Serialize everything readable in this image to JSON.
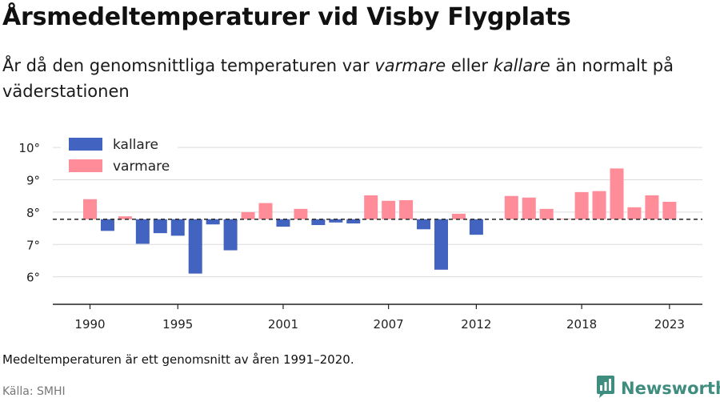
{
  "title": "Årsmedeltemperaturer vid Visby Flygplats",
  "subtitle": {
    "p1": "År då den genomsnittliga temperaturen var ",
    "varmare": "varmare",
    "p2": " eller ",
    "kallare": "kallare",
    "p3": " än normalt på väderstationen"
  },
  "note": "Medeltemperaturen är ett genomsnitt av åren 1991–2020.",
  "source": "Källa: SMHI",
  "brand": "Newsworthy",
  "colors": {
    "kallare": "#4263c0",
    "varmare": "#ff8c99",
    "grid": "#dcdcdc",
    "axis": "#222222",
    "brand": "#3f8d7f"
  },
  "chart_data": {
    "type": "bar",
    "baseline": 7.78,
    "ylim": [
      5.15,
      10.3
    ],
    "yticks": [
      6,
      7,
      8,
      9,
      10
    ],
    "ytick_labels": [
      "6°",
      "7°",
      "8°",
      "9°",
      "10°"
    ],
    "xticks": [
      1990,
      1995,
      2001,
      2007,
      2012,
      2018,
      2023
    ],
    "xtick_labels": [
      "1990",
      "1995",
      "2001",
      "2007",
      "2012",
      "2018",
      "2023"
    ],
    "legend": [
      {
        "key": "kallare",
        "label": "kallare"
      },
      {
        "key": "varmare",
        "label": "varmare"
      }
    ],
    "grid": true,
    "legend_position": "top-left",
    "years": [
      1990,
      1991,
      1992,
      1993,
      1994,
      1995,
      1996,
      1997,
      1998,
      1999,
      2000,
      2001,
      2002,
      2003,
      2004,
      2005,
      2006,
      2007,
      2008,
      2009,
      2010,
      2011,
      2012,
      2013,
      2014,
      2015,
      2016,
      2017,
      2018,
      2019,
      2020,
      2021,
      2022,
      2023
    ],
    "values": [
      8.4,
      7.42,
      7.87,
      7.02,
      7.35,
      7.27,
      6.1,
      7.62,
      6.82,
      8.0,
      8.28,
      7.55,
      8.1,
      7.6,
      7.68,
      7.65,
      8.52,
      8.35,
      8.37,
      7.47,
      6.22,
      7.95,
      7.3,
      null,
      8.5,
      8.45,
      8.1,
      7.8,
      8.62,
      8.65,
      9.35,
      8.15,
      8.52,
      8.32
    ]
  }
}
